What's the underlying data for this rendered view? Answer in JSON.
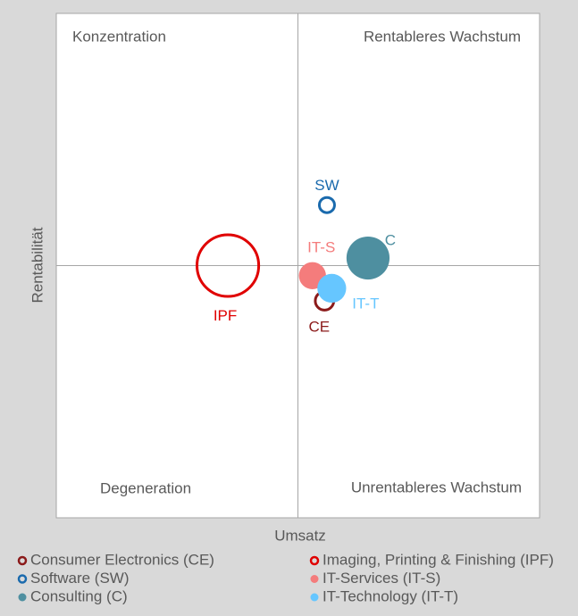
{
  "chart_data": {
    "type": "bubble",
    "x_label": "Umsatz",
    "y_label": "Rentabilität",
    "xlim": [
      -1,
      1
    ],
    "ylim": [
      -1,
      1
    ],
    "quadrants": [
      "Konzentration",
      "Rentableres Wachstum",
      "Degeneration",
      "Unrentableres Wachstum"
    ],
    "series": [
      {
        "name": "Consumer Electronics (CE)",
        "label": "CE",
        "color": "#8b1a1a",
        "filled": false,
        "x": [
          0.11
        ],
        "values": [
          -0.14
        ],
        "sizes": [
          1.4
        ]
      },
      {
        "name": "Imaging, Printing & Finishing (IPF)",
        "label": "IPF",
        "color": "#e00000",
        "filled": false,
        "x": [
          -0.29
        ],
        "values": [
          0.0
        ],
        "sizes": [
          13
        ]
      },
      {
        "name": "Software (SW)",
        "label": "SW",
        "color": "#1a6aad",
        "filled": false,
        "x": [
          0.12
        ],
        "values": [
          0.24
        ],
        "sizes": [
          1
        ]
      },
      {
        "name": "IT-Services (IT-S)",
        "label": "IT-S",
        "color": "#f47c7c",
        "filled": true,
        "x": [
          0.06
        ],
        "values": [
          -0.04
        ],
        "sizes": [
          2.3
        ]
      },
      {
        "name": "Consulting (C)",
        "label": "C",
        "color": "#4e8fa0",
        "filled": true,
        "x": [
          0.29
        ],
        "values": [
          0.03
        ],
        "sizes": [
          5.8
        ]
      },
      {
        "name": "IT-Technology (IT-T)",
        "label": "IT-T",
        "color": "#66c6ff",
        "filled": true,
        "x": [
          0.14
        ],
        "values": [
          -0.09
        ],
        "sizes": [
          2.6
        ]
      }
    ]
  }
}
